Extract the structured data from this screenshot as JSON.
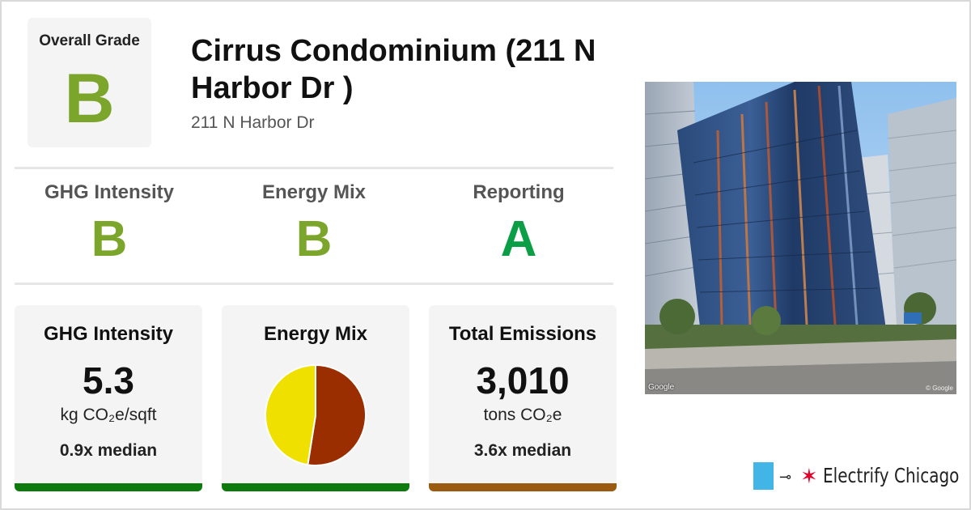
{
  "overall": {
    "label": "Overall Grade",
    "grade": "B"
  },
  "building": {
    "title": "Cirrus Condominium (211 N Harbor Dr )",
    "address": "211 N Harbor Dr"
  },
  "sub_grades": [
    {
      "label": "GHG Intensity",
      "grade": "B"
    },
    {
      "label": "Energy Mix",
      "grade": "B"
    },
    {
      "label": "Reporting",
      "grade": "A"
    }
  ],
  "cards": {
    "ghg": {
      "title": "GHG Intensity",
      "value": "5.3",
      "unit": "kg CO₂e/sqft",
      "median": "0.9x median"
    },
    "energy_mix": {
      "title": "Energy Mix"
    },
    "emissions": {
      "title": "Total Emissions",
      "value": "3,010",
      "unit": "tons CO₂e",
      "median": "3.6x median"
    }
  },
  "energy_mix_chart": {
    "type": "pie",
    "slices": [
      {
        "value": 52.5,
        "color": "#9b2e00"
      },
      {
        "value": 47.5,
        "color": "#f0e000"
      }
    ]
  },
  "photo": {
    "google_label": "Google",
    "copyright_label": "© Google"
  },
  "logo": {
    "text": "Electrify Chicago",
    "plug_icon": "plug-icon",
    "star_icon": "chicago-star-icon"
  },
  "colors": {
    "grade_b": "#7ba62b",
    "grade_a": "#0c9e47",
    "bar_green": "#0c7a0c",
    "bar_brown": "#9a5a10",
    "logo_blue": "#41b6e6",
    "logo_red": "#e4002b"
  }
}
